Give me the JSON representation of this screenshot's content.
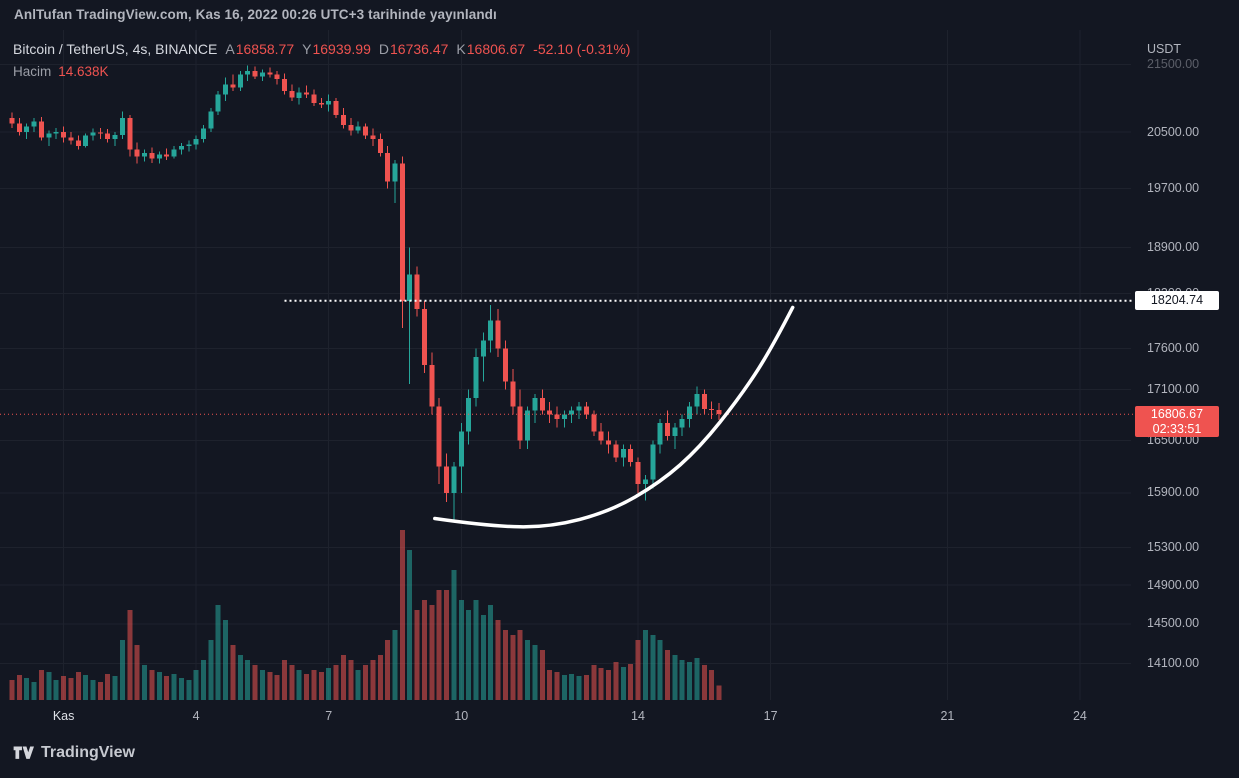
{
  "meta": {
    "publish_line": "AnlTufan TradingView.com, Kas 16, 2022 00:26 UTC+3 tarihinde yayınlandı"
  },
  "header": {
    "symbol_title": "Bitcoin / TetherUS, 4s, BINANCE",
    "ohlc": {
      "o_label": "A",
      "o": "16858.77",
      "h_label": "Y",
      "h": "16939.99",
      "l_label": "D",
      "l": "16736.47",
      "c_label": "K",
      "c": "16806.67",
      "change": "-52.10 (-0.31%)"
    },
    "volume_label": "Hacim",
    "volume_value": "14.638K"
  },
  "price_scale": {
    "currency": "USDT",
    "labels": [
      {
        "value": 21500,
        "text": "21500.00",
        "faded": true
      },
      {
        "value": 20500,
        "text": "20500.00"
      },
      {
        "value": 19700,
        "text": "19700.00"
      },
      {
        "value": 18900,
        "text": "18900.00"
      },
      {
        "value": 18300,
        "text": "18300.00"
      },
      {
        "value": 17600,
        "text": "17600.00"
      },
      {
        "value": 17100,
        "text": "17100.00"
      },
      {
        "value": 16500,
        "text": "16500.00"
      },
      {
        "value": 15900,
        "text": "15900.00"
      },
      {
        "value": 15300,
        "text": "15300.00"
      },
      {
        "value": 14900,
        "text": "14900.00"
      },
      {
        "value": 14500,
        "text": "14500.00"
      },
      {
        "value": 14100,
        "text": "14100.00"
      }
    ],
    "target_price": "18204.74",
    "last_price": "16806.67",
    "countdown": "02:33:51"
  },
  "time_scale": {
    "labels": [
      {
        "text": "Kas",
        "index": 7,
        "major": true
      },
      {
        "text": "4",
        "index": 25
      },
      {
        "text": "7",
        "index": 43
      },
      {
        "text": "10",
        "index": 61
      },
      {
        "text": "14",
        "index": 85
      },
      {
        "text": "17",
        "index": 103
      },
      {
        "text": "21",
        "index": 127
      },
      {
        "text": "24",
        "index": 145
      }
    ]
  },
  "footer": {
    "brand": "TradingView"
  },
  "colors": {
    "background": "#131722",
    "grid": "#1e222d",
    "up": "#26a69a",
    "down": "#ef5350",
    "vol_up": "rgba(38,166,154,0.55)",
    "vol_down": "rgba(239,83,80,0.55)",
    "axis_text": "#b2b5be",
    "white": "#ffffff"
  },
  "chart_data": {
    "type": "candlestick",
    "symbol": "Bitcoin / TetherUS",
    "exchange": "BINANCE",
    "interval": "4s",
    "ylabel": "USDT",
    "price_axis": "log",
    "visible_price_labels": [
      14100,
      21500
    ],
    "candles_format": [
      "open",
      "high",
      "low",
      "close",
      "volumeK"
    ],
    "candles": [
      [
        20700,
        20780,
        20560,
        20620,
        20
      ],
      [
        20620,
        20700,
        20450,
        20500,
        25
      ],
      [
        20500,
        20620,
        20400,
        20580,
        22
      ],
      [
        20580,
        20700,
        20500,
        20650,
        18
      ],
      [
        20650,
        20720,
        20380,
        20420,
        30
      ],
      [
        20420,
        20520,
        20300,
        20480,
        28
      ],
      [
        20480,
        20560,
        20400,
        20500,
        20
      ],
      [
        20500,
        20580,
        20350,
        20420,
        24
      ],
      [
        20420,
        20500,
        20320,
        20380,
        22
      ],
      [
        20380,
        20450,
        20250,
        20300,
        28
      ],
      [
        20300,
        20480,
        20280,
        20450,
        25
      ],
      [
        20450,
        20550,
        20380,
        20490,
        20
      ],
      [
        20490,
        20560,
        20400,
        20480,
        18
      ],
      [
        20480,
        20540,
        20350,
        20400,
        26
      ],
      [
        20400,
        20500,
        20300,
        20460,
        24
      ],
      [
        20460,
        20800,
        20400,
        20700,
        60
      ],
      [
        20700,
        20750,
        20150,
        20250,
        90
      ],
      [
        20250,
        20350,
        20050,
        20150,
        55
      ],
      [
        20150,
        20250,
        20080,
        20200,
        35
      ],
      [
        20200,
        20280,
        20060,
        20120,
        30
      ],
      [
        20120,
        20220,
        20050,
        20180,
        28
      ],
      [
        20180,
        20260,
        20100,
        20150,
        24
      ],
      [
        20150,
        20300,
        20120,
        20250,
        26
      ],
      [
        20250,
        20340,
        20180,
        20300,
        22
      ],
      [
        20300,
        20380,
        20220,
        20320,
        20
      ],
      [
        20320,
        20450,
        20250,
        20400,
        30
      ],
      [
        20400,
        20600,
        20350,
        20550,
        40
      ],
      [
        20550,
        20850,
        20500,
        20800,
        60
      ],
      [
        20800,
        21100,
        20750,
        21050,
        95
      ],
      [
        21050,
        21300,
        20950,
        21200,
        80
      ],
      [
        21200,
        21350,
        21100,
        21150,
        55
      ],
      [
        21150,
        21400,
        21100,
        21350,
        45
      ],
      [
        21350,
        21480,
        21250,
        21400,
        40
      ],
      [
        21400,
        21470,
        21280,
        21320,
        35
      ],
      [
        21320,
        21420,
        21250,
        21380,
        30
      ],
      [
        21380,
        21450,
        21300,
        21350,
        28
      ],
      [
        21350,
        21400,
        21200,
        21280,
        25
      ],
      [
        21280,
        21360,
        21050,
        21100,
        40
      ],
      [
        21100,
        21200,
        20950,
        21000,
        35
      ],
      [
        21000,
        21150,
        20900,
        21080,
        30
      ],
      [
        21080,
        21180,
        21000,
        21050,
        26
      ],
      [
        21050,
        21120,
        20880,
        20920,
        30
      ],
      [
        20920,
        21000,
        20850,
        20900,
        28
      ],
      [
        20900,
        21050,
        20800,
        20950,
        32
      ],
      [
        20950,
        21000,
        20700,
        20750,
        35
      ],
      [
        20750,
        20850,
        20550,
        20600,
        45
      ],
      [
        20600,
        20700,
        20450,
        20520,
        40
      ],
      [
        20520,
        20650,
        20480,
        20580,
        30
      ],
      [
        20580,
        20620,
        20400,
        20450,
        35
      ],
      [
        20450,
        20550,
        20300,
        20400,
        40
      ],
      [
        20400,
        20480,
        20150,
        20200,
        45
      ],
      [
        20200,
        20300,
        19700,
        19800,
        60
      ],
      [
        19800,
        20100,
        19500,
        20050,
        70
      ],
      [
        20050,
        20150,
        17860,
        18200,
        170
      ],
      [
        18200,
        18900,
        17166,
        18545,
        150
      ],
      [
        18545,
        18650,
        18000,
        18100,
        90
      ],
      [
        18100,
        18200,
        17300,
        17400,
        100
      ],
      [
        17400,
        17550,
        16800,
        16900,
        95
      ],
      [
        16900,
        17000,
        16000,
        16200,
        110
      ],
      [
        16200,
        16350,
        15800,
        15900,
        110
      ],
      [
        15900,
        16250,
        15588,
        16200,
        130
      ],
      [
        16200,
        16700,
        15900,
        16600,
        100
      ],
      [
        16600,
        17100,
        16450,
        17000,
        90
      ],
      [
        17000,
        17600,
        16900,
        17500,
        100
      ],
      [
        17500,
        17800,
        17200,
        17700,
        85
      ],
      [
        17700,
        18150,
        17550,
        17950,
        95
      ],
      [
        17950,
        18100,
        17500,
        17600,
        80
      ],
      [
        17600,
        17700,
        17100,
        17200,
        70
      ],
      [
        17200,
        17350,
        16800,
        16900,
        65
      ],
      [
        16900,
        17100,
        16400,
        16500,
        70
      ],
      [
        16500,
        16900,
        16400,
        16850,
        60
      ],
      [
        16850,
        17050,
        16700,
        17000,
        55
      ],
      [
        17000,
        17100,
        16800,
        16850,
        50
      ],
      [
        16850,
        16950,
        16700,
        16800,
        30
      ],
      [
        16800,
        16900,
        16650,
        16750,
        28
      ],
      [
        16750,
        16850,
        16650,
        16800,
        25
      ],
      [
        16800,
        16900,
        16700,
        16850,
        26
      ],
      [
        16850,
        16950,
        16750,
        16900,
        24
      ],
      [
        16900,
        16950,
        16750,
        16800,
        25
      ],
      [
        16800,
        16850,
        16550,
        16600,
        35
      ],
      [
        16600,
        16700,
        16450,
        16500,
        32
      ],
      [
        16500,
        16600,
        16350,
        16450,
        30
      ],
      [
        16450,
        16500,
        16250,
        16300,
        38
      ],
      [
        16300,
        16450,
        16200,
        16400,
        33
      ],
      [
        16400,
        16450,
        16200,
        16250,
        36
      ],
      [
        16250,
        16300,
        15900,
        16000,
        60
      ],
      [
        16000,
        16100,
        15815,
        16050,
        70
      ],
      [
        16050,
        16500,
        15950,
        16450,
        65
      ],
      [
        16450,
        16750,
        16350,
        16700,
        60
      ],
      [
        16700,
        16850,
        16500,
        16550,
        50
      ],
      [
        16550,
        16700,
        16400,
        16650,
        45
      ],
      [
        16650,
        16800,
        16550,
        16750,
        40
      ],
      [
        16750,
        16950,
        16650,
        16900,
        38
      ],
      [
        16900,
        17135,
        16800,
        17050,
        42
      ],
      [
        17050,
        17100,
        16800,
        16870,
        35
      ],
      [
        16870,
        16960,
        16750,
        16858,
        30
      ],
      [
        16858.77,
        16939.99,
        16736.47,
        16806.67,
        14.638
      ]
    ],
    "annotations": {
      "target_line": {
        "price": 18204.74,
        "style": "dotted-white",
        "from_index": 37
      },
      "last_price_line": {
        "price": 16806.67,
        "style": "dotted-red"
      },
      "arc": {
        "style": "solid-white-curve",
        "points": [
          [
            57.4,
            15617
          ],
          [
            64.9,
            15530
          ],
          [
            73.0,
            15520
          ],
          [
            81.2,
            15694
          ],
          [
            88.0,
            16017
          ],
          [
            93.4,
            16418
          ],
          [
            98.8,
            17006
          ],
          [
            102.9,
            17564
          ],
          [
            106.0,
            18119
          ]
        ]
      }
    }
  }
}
